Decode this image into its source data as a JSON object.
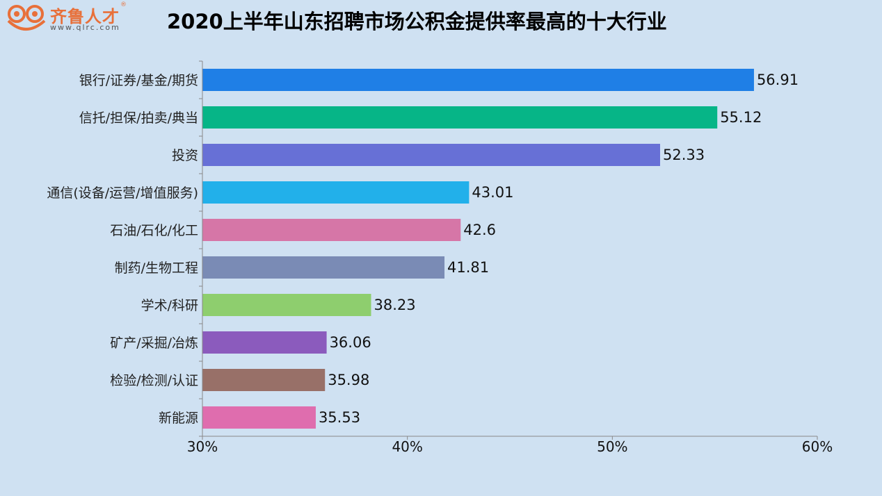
{
  "header": {
    "logo_text": "齐鲁人才",
    "logo_reg": "®",
    "logo_url": "www.qlrc.com",
    "title": "2020上半年山东招聘市场公积金提供率最高的十大行业"
  },
  "chart_data": {
    "type": "bar",
    "orientation": "horizontal",
    "title": "2020上半年山东招聘市场公积金提供率最高的十大行业",
    "xlabel": "",
    "ylabel": "",
    "xlim": [
      30,
      60
    ],
    "xticks": [
      30,
      40,
      50,
      60
    ],
    "xtick_labels": [
      "30%",
      "40%",
      "50%",
      "60%"
    ],
    "grid": false,
    "categories": [
      "银行/证券/基金/期货",
      "信托/担保/拍卖/典当",
      "投资",
      "通信(设备/运营/增值服务)",
      "石油/石化/化工",
      "制药/生物工程",
      "学术/科研",
      "矿产/采掘/冶炼",
      "检验/检测/认证",
      "新能源"
    ],
    "values": [
      56.91,
      55.12,
      52.33,
      43.01,
      42.6,
      41.81,
      38.23,
      36.06,
      35.98,
      35.53
    ],
    "value_labels": [
      "56.91",
      "55.12",
      "52.33",
      "43.01",
      "42.6",
      "41.81",
      "38.23",
      "36.06",
      "35.98",
      "35.53"
    ],
    "colors": [
      "#1f7fe6",
      "#06b587",
      "#6770d6",
      "#22b0ea",
      "#d676a7",
      "#7a8bb5",
      "#8ece6e",
      "#8b5bbd",
      "#987068",
      "#df6dae"
    ]
  }
}
